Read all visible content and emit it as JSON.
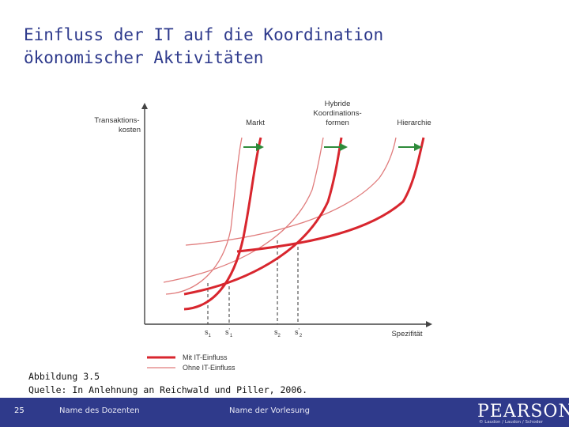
{
  "slide": {
    "title_line1": "Einfluss der IT auf die Koordination",
    "title_line2": "ökonomischer Aktivitäten"
  },
  "figure": {
    "y_axis_label_line1": "Transaktions-",
    "y_axis_label_line2": "kosten",
    "x_axis_label": "Spezifität",
    "curve_labels": {
      "markt": "Markt",
      "hybrid_line1": "Hybride",
      "hybrid_line2": "Koordinations-",
      "hybrid_line3": "formen",
      "hierarchie": "Hierarchie"
    },
    "x_markers": [
      {
        "base": "s",
        "sub": "1",
        "prime": false
      },
      {
        "base": "s",
        "sub": "1",
        "prime": true
      },
      {
        "base": "s",
        "sub": "2",
        "prime": false
      },
      {
        "base": "s",
        "sub": "2",
        "prime": true
      }
    ],
    "legend": {
      "with_it": "Mit IT-Einfluss",
      "without_it": "Ohne IT-Einfluss"
    },
    "colors": {
      "with_it": "#d8262e",
      "without_it": "#e07c7c",
      "arrow": "#2e8b3a",
      "axis": "#444444"
    }
  },
  "caption": {
    "line1": "Abbildung 3.5",
    "line2": "Quelle: In Anlehnung an Reichwald und Piller, 2006."
  },
  "footer": {
    "page_number": "25",
    "presenter": "Name des Dozenten",
    "course": "Name der Vorlesung",
    "logo": "PEARSON",
    "copyright": "© Laudon / Laudon / Schoder"
  }
}
